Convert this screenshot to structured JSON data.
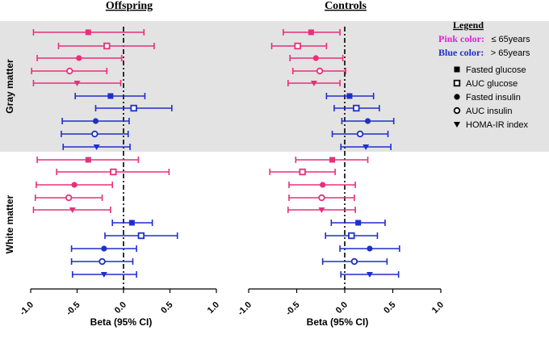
{
  "panels": {
    "offspring": {
      "title": "Offspring",
      "xlabel": "Beta (95% CI)"
    },
    "controls": {
      "title": "Controls",
      "xlabel": "Beta (95% CI)"
    }
  },
  "row_labels": {
    "gray": "Gray matter",
    "white": "White matter"
  },
  "legend": {
    "title": "Legend",
    "pink_label": "Pink color:",
    "pink_value": "≤ 65years",
    "blue_label": "Blue color:",
    "blue_value": "> 65years",
    "items": [
      {
        "marker": "filled-square",
        "label": "Fasted glucose"
      },
      {
        "marker": "open-square",
        "label": "AUC glucose"
      },
      {
        "marker": "filled-circle",
        "label": "Fasted insulin"
      },
      {
        "marker": "open-circle",
        "label": "AUC insulin"
      },
      {
        "marker": "filled-triangle",
        "label": "HOMA-IR index"
      }
    ]
  },
  "colors": {
    "pink": "#e8307a",
    "blue": "#1f2fcc",
    "shade": "#e3e3e3",
    "axis": "#000000"
  },
  "chart_data": [
    {
      "type": "forest",
      "title": "Offspring",
      "xlabel": "Beta (95% CI)",
      "xlim": [
        -1.0,
        1.0
      ],
      "xticks": [
        "-1.0",
        "-0.5",
        "0.0",
        "0.5",
        "1.0"
      ],
      "xtick_values": [
        -1.0,
        -0.5,
        0.0,
        0.5,
        1.0
      ],
      "reference_line": 0,
      "series": [
        {
          "group": "Gray matter",
          "age": "≤ 65years",
          "measure": "Fasted glucose",
          "estimate": -0.38,
          "lower": -0.97,
          "upper": 0.22
        },
        {
          "group": "Gray matter",
          "age": "≤ 65years",
          "measure": "AUC glucose",
          "estimate": -0.18,
          "lower": -0.7,
          "upper": 0.33
        },
        {
          "group": "Gray matter",
          "age": "≤ 65years",
          "measure": "Fasted insulin",
          "estimate": -0.48,
          "lower": -0.93,
          "upper": -0.02
        },
        {
          "group": "Gray matter",
          "age": "≤ 65years",
          "measure": "AUC insulin",
          "estimate": -0.58,
          "lower": -0.99,
          "upper": -0.18
        },
        {
          "group": "Gray matter",
          "age": "≤ 65years",
          "measure": "HOMA-IR index",
          "estimate": -0.5,
          "lower": -0.97,
          "upper": -0.03
        },
        {
          "group": "Gray matter",
          "age": "> 65years",
          "measure": "Fasted glucose",
          "estimate": -0.14,
          "lower": -0.52,
          "upper": 0.23
        },
        {
          "group": "Gray matter",
          "age": "> 65years",
          "measure": "AUC glucose",
          "estimate": 0.11,
          "lower": -0.3,
          "upper": 0.52
        },
        {
          "group": "Gray matter",
          "age": "> 65years",
          "measure": "Fasted insulin",
          "estimate": -0.3,
          "lower": -0.66,
          "upper": 0.06
        },
        {
          "group": "Gray matter",
          "age": "> 65years",
          "measure": "AUC insulin",
          "estimate": -0.31,
          "lower": -0.67,
          "upper": 0.05
        },
        {
          "group": "Gray matter",
          "age": "> 65years",
          "measure": "HOMA-IR index",
          "estimate": -0.29,
          "lower": -0.65,
          "upper": 0.07
        },
        {
          "group": "White matter",
          "age": "≤ 65years",
          "measure": "Fasted glucose",
          "estimate": -0.38,
          "lower": -0.93,
          "upper": 0.16
        },
        {
          "group": "White matter",
          "age": "≤ 65years",
          "measure": "AUC glucose",
          "estimate": -0.11,
          "lower": -0.72,
          "upper": 0.49
        },
        {
          "group": "White matter",
          "age": "≤ 65years",
          "measure": "Fasted insulin",
          "estimate": -0.53,
          "lower": -0.94,
          "upper": -0.12
        },
        {
          "group": "White matter",
          "age": "≤ 65years",
          "measure": "AUC insulin",
          "estimate": -0.59,
          "lower": -0.95,
          "upper": -0.23
        },
        {
          "group": "White matter",
          "age": "≤ 65years",
          "measure": "HOMA-IR index",
          "estimate": -0.55,
          "lower": -0.97,
          "upper": -0.14
        },
        {
          "group": "White matter",
          "age": "> 65years",
          "measure": "Fasted glucose",
          "estimate": 0.09,
          "lower": -0.12,
          "upper": 0.31
        },
        {
          "group": "White matter",
          "age": "> 65years",
          "measure": "AUC glucose",
          "estimate": 0.19,
          "lower": -0.2,
          "upper": 0.58
        },
        {
          "group": "White matter",
          "age": "> 65years",
          "measure": "Fasted insulin",
          "estimate": -0.21,
          "lower": -0.56,
          "upper": 0.14
        },
        {
          "group": "White matter",
          "age": "> 65years",
          "measure": "AUC insulin",
          "estimate": -0.23,
          "lower": -0.56,
          "upper": 0.1
        },
        {
          "group": "White matter",
          "age": "> 65years",
          "measure": "HOMA-IR index",
          "estimate": -0.21,
          "lower": -0.55,
          "upper": 0.14
        }
      ]
    },
    {
      "type": "forest",
      "title": "Controls",
      "xlabel": "Beta (95% CI)",
      "xlim": [
        -1.0,
        1.0
      ],
      "xticks": [
        "-1.0",
        "-0.5",
        "0.0",
        "0.5",
        "1.0"
      ],
      "xtick_values": [
        -1.0,
        -0.5,
        0.0,
        0.5,
        1.0
      ],
      "reference_line": 0,
      "series": [
        {
          "group": "Gray matter",
          "age": "≤ 65years",
          "measure": "Fasted glucose",
          "estimate": -0.35,
          "lower": -0.64,
          "upper": -0.05
        },
        {
          "group": "Gray matter",
          "age": "≤ 65years",
          "measure": "AUC glucose",
          "estimate": -0.49,
          "lower": -0.76,
          "upper": -0.19
        },
        {
          "group": "Gray matter",
          "age": "≤ 65years",
          "measure": "Fasted insulin",
          "estimate": -0.3,
          "lower": -0.57,
          "upper": -0.02
        },
        {
          "group": "Gray matter",
          "age": "≤ 65years",
          "measure": "AUC insulin",
          "estimate": -0.26,
          "lower": -0.54,
          "upper": 0.01
        },
        {
          "group": "Gray matter",
          "age": "≤ 65years",
          "measure": "HOMA-IR index",
          "estimate": -0.32,
          "lower": -0.59,
          "upper": -0.05
        },
        {
          "group": "Gray matter",
          "age": "> 65years",
          "measure": "Fasted glucose",
          "estimate": 0.05,
          "lower": -0.19,
          "upper": 0.3
        },
        {
          "group": "Gray matter",
          "age": "> 65years",
          "measure": "AUC glucose",
          "estimate": 0.12,
          "lower": -0.11,
          "upper": 0.36
        },
        {
          "group": "Gray matter",
          "age": "> 65years",
          "measure": "Fasted insulin",
          "estimate": 0.24,
          "lower": -0.03,
          "upper": 0.51
        },
        {
          "group": "Gray matter",
          "age": "> 65years",
          "measure": "AUC insulin",
          "estimate": 0.16,
          "lower": -0.13,
          "upper": 0.45
        },
        {
          "group": "Gray matter",
          "age": "> 65years",
          "measure": "HOMA-IR index",
          "estimate": 0.22,
          "lower": -0.04,
          "upper": 0.48
        },
        {
          "group": "White matter",
          "age": "≤ 65years",
          "measure": "Fasted glucose",
          "estimate": -0.13,
          "lower": -0.51,
          "upper": 0.24
        },
        {
          "group": "White matter",
          "age": "≤ 65years",
          "measure": "AUC glucose",
          "estimate": -0.44,
          "lower": -0.78,
          "upper": -0.1
        },
        {
          "group": "White matter",
          "age": "≤ 65years",
          "measure": "Fasted insulin",
          "estimate": -0.23,
          "lower": -0.58,
          "upper": 0.11
        },
        {
          "group": "White matter",
          "age": "≤ 65years",
          "measure": "AUC insulin",
          "estimate": -0.24,
          "lower": -0.58,
          "upper": 0.1
        },
        {
          "group": "White matter",
          "age": "≤ 65years",
          "measure": "HOMA-IR index",
          "estimate": -0.24,
          "lower": -0.59,
          "upper": 0.11
        },
        {
          "group": "White matter",
          "age": "> 65years",
          "measure": "Fasted glucose",
          "estimate": 0.14,
          "lower": -0.14,
          "upper": 0.42
        },
        {
          "group": "White matter",
          "age": "> 65years",
          "measure": "AUC glucose",
          "estimate": 0.07,
          "lower": -0.2,
          "upper": 0.34
        },
        {
          "group": "White matter",
          "age": "> 65years",
          "measure": "Fasted insulin",
          "estimate": 0.26,
          "lower": -0.05,
          "upper": 0.57
        },
        {
          "group": "White matter",
          "age": "> 65years",
          "measure": "AUC insulin",
          "estimate": 0.1,
          "lower": -0.23,
          "upper": 0.44
        },
        {
          "group": "White matter",
          "age": "> 65years",
          "measure": "HOMA-IR index",
          "estimate": 0.26,
          "lower": -0.04,
          "upper": 0.56
        }
      ]
    }
  ]
}
